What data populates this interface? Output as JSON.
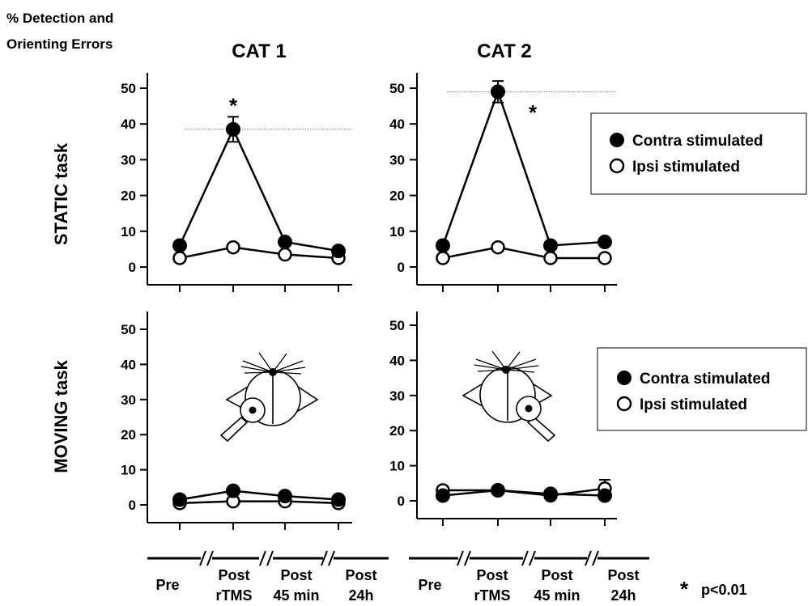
{
  "figure": {
    "ylabel_line1": "% Detection and",
    "ylabel_line2": "Orienting Errors",
    "columns": [
      "CAT 1",
      "CAT 2"
    ],
    "rows": [
      "STATIC task",
      "MOVING task"
    ],
    "legend": {
      "contra": "Contra stimulated",
      "ipsi": "Ipsi stimulated"
    },
    "time_labels": [
      {
        "l1": "Pre",
        "l2": ""
      },
      {
        "l1": "Post",
        "l2": "rTMS"
      },
      {
        "l1": "Post",
        "l2": "45 min"
      },
      {
        "l1": "Post",
        "l2": "24h"
      }
    ],
    "significance": {
      "symbol": "*",
      "note": "p<0.01"
    },
    "y_ticks": [
      0,
      10,
      20,
      30,
      40,
      50
    ],
    "colors": {
      "contra": "#000000",
      "ipsi": "#ffffff",
      "stroke": "#000000",
      "reference_line": "#777777"
    }
  },
  "chart_data": [
    {
      "type": "line",
      "title": "CAT 1",
      "row": "STATIC task",
      "categories": [
        "Pre",
        "Post rTMS",
        "Post 45 min",
        "Post 24h"
      ],
      "ylim": [
        0,
        52
      ],
      "series": [
        {
          "name": "Contra stimulated",
          "values": [
            6,
            38.5,
            7,
            4.5
          ],
          "error": [
            0,
            3.5,
            0,
            0
          ]
        },
        {
          "name": "Ipsi stimulated",
          "values": [
            2.5,
            5.5,
            3.5,
            2.5
          ],
          "error": [
            0,
            0,
            0,
            0
          ]
        }
      ],
      "reference_line": 38.5,
      "significance_marks": [
        {
          "category": "Post rTMS",
          "value": 47,
          "symbol": "*"
        }
      ]
    },
    {
      "type": "line",
      "title": "CAT 2",
      "row": "STATIC task",
      "categories": [
        "Pre",
        "Post rTMS",
        "Post 45 min",
        "Post 24h"
      ],
      "ylim": [
        0,
        52
      ],
      "series": [
        {
          "name": "Contra stimulated",
          "values": [
            6,
            49,
            6,
            7
          ],
          "error": [
            0,
            3,
            0,
            0
          ]
        },
        {
          "name": "Ipsi stimulated",
          "values": [
            2.5,
            5.5,
            2.5,
            2.5
          ],
          "error": [
            0,
            0,
            0,
            0
          ]
        }
      ],
      "reference_line": 49,
      "significance_marks": [
        {
          "category": "Post rTMS",
          "value": 45,
          "symbol": "*"
        }
      ]
    },
    {
      "type": "line",
      "title": "CAT 1",
      "row": "MOVING task",
      "categories": [
        "Pre",
        "Post rTMS",
        "Post 45 min",
        "Post 24h"
      ],
      "ylim": [
        0,
        52
      ],
      "series": [
        {
          "name": "Contra stimulated",
          "values": [
            1.5,
            4,
            2.5,
            1.5
          ],
          "error": [
            0,
            0,
            0,
            0
          ]
        },
        {
          "name": "Ipsi stimulated",
          "values": [
            0.5,
            1,
            1,
            0.5
          ],
          "error": [
            0,
            0,
            0,
            0
          ]
        }
      ],
      "reference_line": null,
      "significance_marks": []
    },
    {
      "type": "line",
      "title": "CAT 2",
      "row": "MOVING task",
      "categories": [
        "Pre",
        "Post rTMS",
        "Post 45 min",
        "Post 24h"
      ],
      "ylim": [
        0,
        52
      ],
      "series": [
        {
          "name": "Contra stimulated",
          "values": [
            1.5,
            3,
            2,
            1.5
          ],
          "error": [
            0,
            0,
            0,
            0
          ]
        },
        {
          "name": "Ipsi stimulated",
          "values": [
            3,
            3,
            1.5,
            3.5
          ],
          "error": [
            0,
            0,
            0,
            2.5
          ]
        }
      ],
      "reference_line": null,
      "significance_marks": []
    }
  ]
}
